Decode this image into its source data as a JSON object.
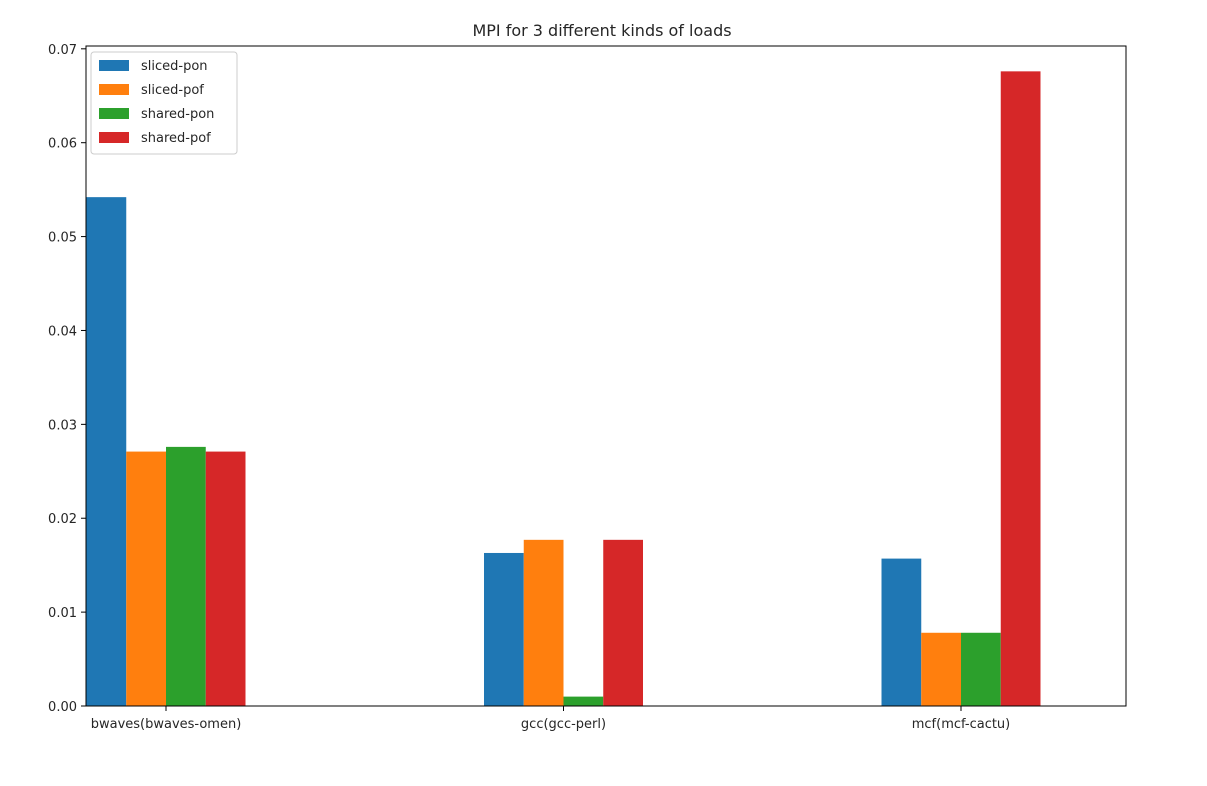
{
  "chart_data": {
    "type": "bar",
    "title": "MPI for 3 different kinds of loads",
    "xlabel": "",
    "ylabel": "",
    "categories": [
      "bwaves(bwaves-omen)",
      "gcc(gcc-perl)",
      "mcf(mcf-cactu)"
    ],
    "ylim": [
      0,
      0.0703
    ],
    "yticks": [
      0.0,
      0.01,
      0.02,
      0.03,
      0.04,
      0.05,
      0.06,
      0.07
    ],
    "ytick_labels": [
      "0.00",
      "0.01",
      "0.02",
      "0.03",
      "0.04",
      "0.05",
      "0.06",
      "0.07"
    ],
    "grid": false,
    "legend_position": "top-left",
    "series": [
      {
        "name": "sliced-pon",
        "color": "#1f77b4",
        "values": [
          0.0542,
          0.0163,
          0.0157
        ]
      },
      {
        "name": "sliced-pof",
        "color": "#ff7f0e",
        "values": [
          0.0271,
          0.0177,
          0.0078
        ]
      },
      {
        "name": "shared-pon",
        "color": "#2ca02c",
        "values": [
          0.0276,
          0.001,
          0.0078
        ]
      },
      {
        "name": "shared-pof",
        "color": "#d62728",
        "values": [
          0.0271,
          0.0177,
          0.0676
        ]
      }
    ]
  }
}
